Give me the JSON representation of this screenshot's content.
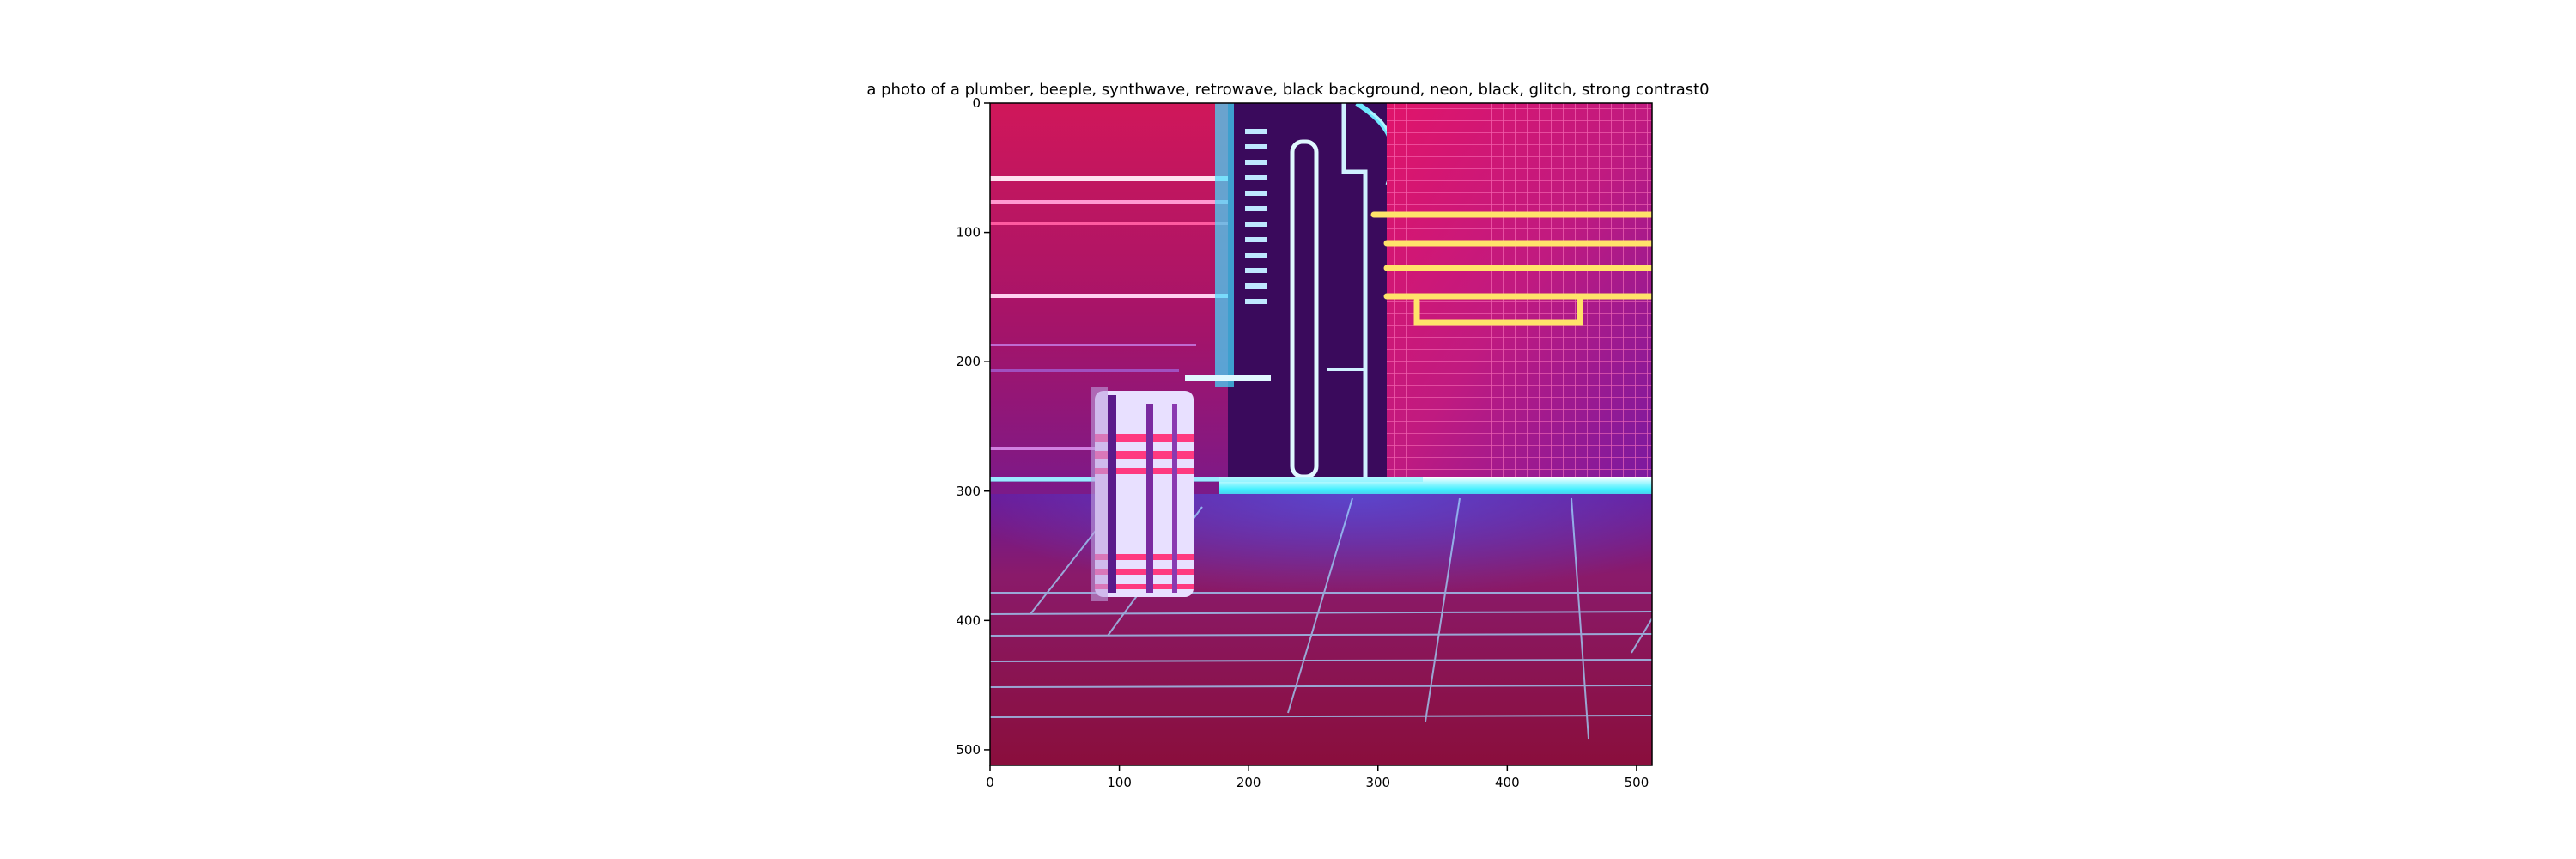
{
  "figure": {
    "title": "a photo of a plumber,  beeple, synthwave, retrowave, black background, neon, black, glitch, strong contrast0",
    "x_ticks": [
      "0",
      "100",
      "200",
      "300",
      "400",
      "500"
    ],
    "y_ticks": [
      "0",
      "100",
      "200",
      "300",
      "400",
      "500"
    ],
    "image_extent": [
      0,
      512,
      512,
      0
    ],
    "image_description_colors": {
      "background_top": "#c2185b",
      "background_mid": "#6a1b9a",
      "floor": "#8e1650",
      "neon_cyan": "#40f0ff",
      "neon_pink": "#ff2e6d",
      "neon_yellow": "#ffe36a",
      "dark_purple": "#3a0a5c"
    }
  }
}
